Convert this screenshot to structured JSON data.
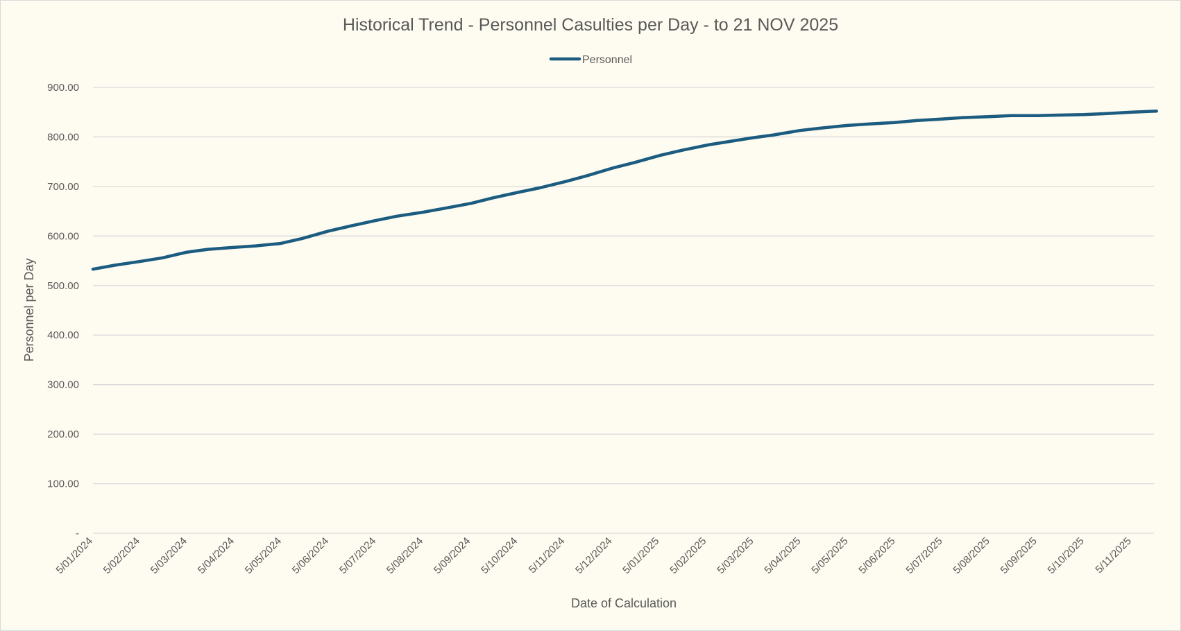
{
  "chart_data": {
    "type": "line",
    "title": "Historical Trend - Personnel Casulties per Day - to 21 NOV 2025",
    "xlabel": "Date of Calculation",
    "ylabel": "Personnel per Day",
    "ylim": [
      0,
      900
    ],
    "y_ticks": [
      "-",
      "100.00",
      "200.00",
      "300.00",
      "400.00",
      "500.00",
      "600.00",
      "700.00",
      "800.00",
      "900.00"
    ],
    "x_tick_labels": [
      "5/01/2024",
      "5/02/2024",
      "5/03/2024",
      "5/04/2024",
      "5/05/2024",
      "5/06/2024",
      "5/07/2024",
      "5/08/2024",
      "5/09/2024",
      "5/10/2024",
      "5/11/2024",
      "5/12/2024",
      "5/01/2025",
      "5/02/2025",
      "5/03/2025",
      "5/04/2025",
      "5/05/2025",
      "5/06/2025",
      "5/07/2025",
      "5/08/2025",
      "5/09/2025",
      "5/10/2025",
      "5/11/2025"
    ],
    "grid": true,
    "legend_position": "top",
    "series_color": "#1b5c80",
    "series": [
      {
        "name": "Personnel",
        "points": [
          [
            "2024-01-05",
            533
          ],
          [
            "2024-01-19",
            541
          ],
          [
            "2024-02-05",
            549
          ],
          [
            "2024-02-19",
            556
          ],
          [
            "2024-03-05",
            567
          ],
          [
            "2024-03-19",
            573
          ],
          [
            "2024-04-05",
            577
          ],
          [
            "2024-04-19",
            580
          ],
          [
            "2024-05-05",
            585
          ],
          [
            "2024-05-19",
            595
          ],
          [
            "2024-06-05",
            610
          ],
          [
            "2024-06-19",
            620
          ],
          [
            "2024-07-05",
            631
          ],
          [
            "2024-07-19",
            640
          ],
          [
            "2024-08-05",
            648
          ],
          [
            "2024-08-19",
            656
          ],
          [
            "2024-09-05",
            666
          ],
          [
            "2024-09-19",
            677
          ],
          [
            "2024-10-05",
            688
          ],
          [
            "2024-10-19",
            697
          ],
          [
            "2024-11-05",
            710
          ],
          [
            "2024-11-19",
            722
          ],
          [
            "2024-12-05",
            737
          ],
          [
            "2024-12-19",
            748
          ],
          [
            "2025-01-05",
            763
          ],
          [
            "2025-01-19",
            773
          ],
          [
            "2025-02-05",
            784
          ],
          [
            "2025-02-19",
            791
          ],
          [
            "2025-03-05",
            798
          ],
          [
            "2025-03-19",
            804
          ],
          [
            "2025-04-05",
            813
          ],
          [
            "2025-04-19",
            818
          ],
          [
            "2025-05-05",
            823
          ],
          [
            "2025-05-19",
            826
          ],
          [
            "2025-06-05",
            829
          ],
          [
            "2025-06-19",
            833
          ],
          [
            "2025-07-05",
            836
          ],
          [
            "2025-07-19",
            839
          ],
          [
            "2025-08-05",
            841
          ],
          [
            "2025-08-19",
            843
          ],
          [
            "2025-09-05",
            843
          ],
          [
            "2025-09-19",
            844
          ],
          [
            "2025-10-05",
            845
          ],
          [
            "2025-10-19",
            847
          ],
          [
            "2025-11-05",
            850
          ],
          [
            "2025-11-21",
            852
          ]
        ]
      }
    ]
  }
}
